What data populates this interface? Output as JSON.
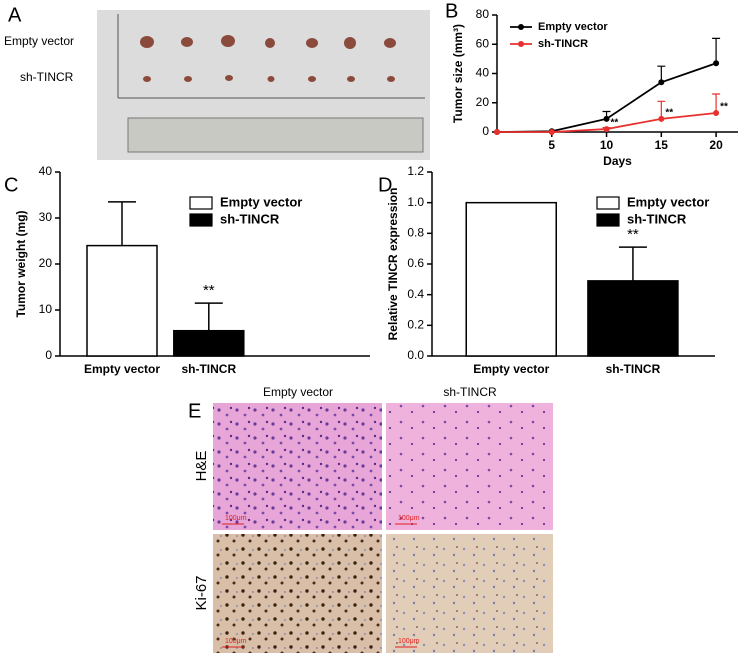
{
  "panel_a": {
    "label": "A",
    "rows": [
      "Empty vector",
      "sh-TINCR"
    ]
  },
  "chart_data": [
    {
      "type": "line",
      "label": "B",
      "xlabel": "Days",
      "ylabel": "Tumor size (mm³)",
      "x": [
        0,
        5,
        10,
        15,
        20
      ],
      "xlim": [
        0,
        22
      ],
      "xticks": [
        5,
        10,
        15,
        20
      ],
      "ylim": [
        0,
        80
      ],
      "yticks": [
        0,
        20,
        40,
        60,
        80
      ],
      "series": [
        {
          "name": "Empty vector",
          "color": "#000000",
          "values": [
            0,
            0.5,
            9,
            34,
            47
          ],
          "errors": [
            0,
            0,
            5,
            11,
            17
          ]
        },
        {
          "name": "sh-TINCR",
          "color": "#e8312f",
          "values": [
            0,
            0,
            2,
            9,
            13
          ],
          "errors": [
            0,
            0,
            1,
            12,
            13
          ],
          "value_annotations": [
            null,
            null,
            "**",
            "**",
            "**"
          ]
        }
      ]
    },
    {
      "type": "bar",
      "label": "C",
      "ylabel": "Tumor weight (mg)",
      "categories": [
        "Empty vector",
        "sh-TINCR"
      ],
      "values": [
        24,
        5.5
      ],
      "errors": [
        9.5,
        6
      ],
      "colors": [
        "#ffffff",
        "#000000"
      ],
      "annotations": [
        null,
        "**"
      ],
      "ylim": [
        0,
        40
      ],
      "yticks": [
        0,
        10,
        20,
        30,
        40
      ]
    },
    {
      "type": "bar",
      "label": "D",
      "ylabel": "Relative TINCR expression",
      "categories": [
        "Empty vector",
        "sh-TINCR"
      ],
      "values": [
        1.0,
        0.49
      ],
      "errors": [
        0,
        0.22
      ],
      "colors": [
        "#ffffff",
        "#000000"
      ],
      "annotations": [
        null,
        "**"
      ],
      "ylim": [
        0,
        1.2
      ],
      "yticks": [
        {
          "value": 0,
          "label": "0.0"
        },
        0.2,
        0.4,
        0.6,
        0.8,
        {
          "value": 1,
          "label": "1.0"
        },
        {
          "value": 1.2,
          "label": "1.2"
        }
      ]
    }
  ],
  "panel_e": {
    "label": "E",
    "columns": [
      "Empty vector",
      "sh-TINCR"
    ],
    "rows": [
      "H&E",
      "Ki-67"
    ],
    "scale_bar": "100μm"
  }
}
